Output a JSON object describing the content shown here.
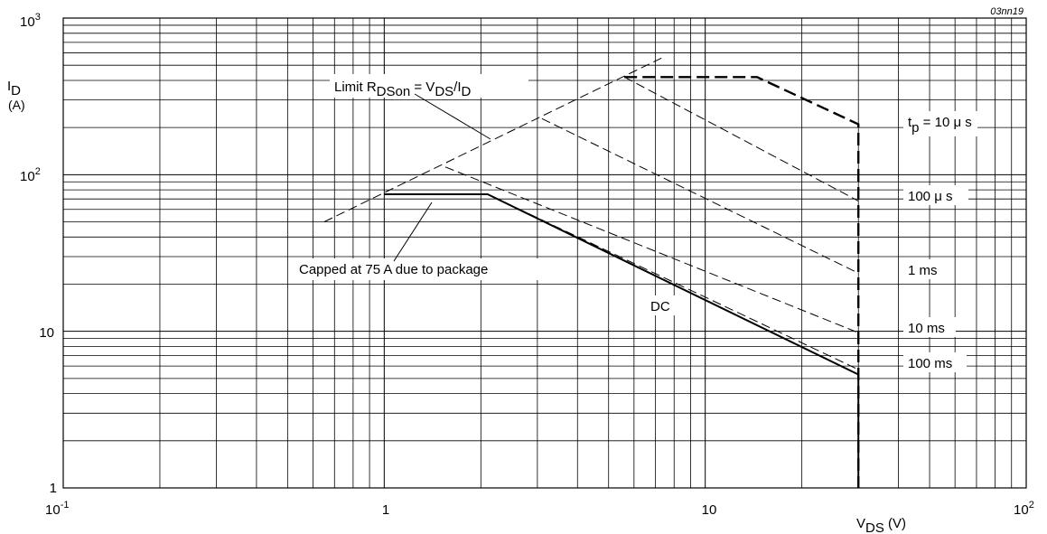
{
  "chart_data": {
    "type": "line",
    "figure_id": "03nn19",
    "xscale": "log",
    "yscale": "log",
    "xlim": [
      0.1,
      100
    ],
    "ylim": [
      1,
      1000
    ],
    "x_tick_labels": [
      {
        "base": "10",
        "exp": "-1"
      },
      {
        "base": "1",
        "exp": ""
      },
      {
        "base": "10",
        "exp": ""
      },
      {
        "base": "10",
        "exp": "2"
      }
    ],
    "y_tick_labels": [
      {
        "base": "1",
        "exp": ""
      },
      {
        "base": "10",
        "exp": ""
      },
      {
        "base": "10",
        "exp": "2"
      },
      {
        "base": "10",
        "exp": "3"
      }
    ],
    "xlabel": {
      "main": "V",
      "sub": "DS",
      "unit": " (V)"
    },
    "ylabel": {
      "main": "I",
      "sub": "D",
      "unit": "(A)"
    },
    "grid": true,
    "series": [
      {
        "key": "dc",
        "style": "solid",
        "points": [
          [
            1.0,
            75
          ],
          [
            2.1,
            75
          ],
          [
            30,
            5.3
          ],
          [
            30,
            1
          ]
        ]
      },
      {
        "key": "tp100ms",
        "style": "dashed",
        "points": [
          [
            1.0,
            75
          ],
          [
            2.1,
            75
          ],
          [
            30,
            5.7
          ]
        ]
      },
      {
        "key": "tp10ms",
        "style": "dashed",
        "points": [
          [
            1.55,
            112
          ],
          [
            30,
            9.8
          ]
        ]
      },
      {
        "key": "tp1ms",
        "style": "dashed",
        "points": [
          [
            3.1,
            228
          ],
          [
            30,
            23.5
          ]
        ]
      },
      {
        "key": "tp100us",
        "style": "dashed",
        "points": [
          [
            5.6,
            420
          ],
          [
            30,
            68
          ]
        ]
      },
      {
        "key": "tp10us",
        "style": "dashed-bold",
        "points": [
          [
            5.6,
            420
          ],
          [
            14.5,
            420
          ],
          [
            30,
            210
          ],
          [
            30,
            1
          ]
        ]
      },
      {
        "key": "rdson-limit",
        "style": "dashed",
        "points": [
          [
            0.65,
            50
          ],
          [
            7.5,
            570
          ]
        ]
      }
    ],
    "annotations": {
      "rdson": {
        "pre": "Limit R",
        "sub1": "DSon",
        "mid": " = V",
        "sub2": "DS",
        "mid2": "/I",
        "sub3": "D"
      },
      "capped": "Capped at 75 A due to package",
      "dc": "DC",
      "tp10us": {
        "pre": "t",
        "sub": "p",
        "post": " = 10 μ s"
      },
      "tp100us": "100 μ s",
      "tp1ms": "1 ms",
      "tp10ms": "10 ms",
      "tp100ms": "100 ms"
    }
  }
}
